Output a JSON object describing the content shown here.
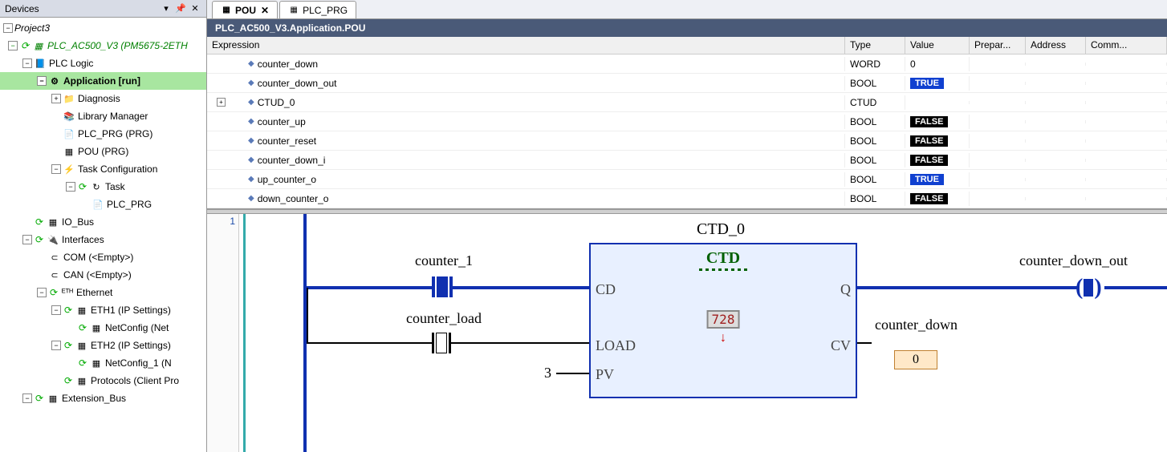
{
  "panel": {
    "title": "Devices",
    "project": "Project3"
  },
  "tree": [
    {
      "indent": 0,
      "toggle": "-",
      "status": "green",
      "icon": "device",
      "label": "PLC_AC500_V3 (PM5675-2ETH",
      "italic": true,
      "green": true
    },
    {
      "indent": 1,
      "toggle": "-",
      "status": "",
      "icon": "plclogic",
      "label": "PLC Logic"
    },
    {
      "indent": 2,
      "toggle": "-",
      "status": "",
      "icon": "app",
      "label": "Application [run]",
      "bold": true,
      "bg": true
    },
    {
      "indent": 3,
      "toggle": "+",
      "status": "",
      "icon": "folder",
      "label": "Diagnosis"
    },
    {
      "indent": 3,
      "toggle": " ",
      "status": "",
      "icon": "lib",
      "label": "Library Manager"
    },
    {
      "indent": 3,
      "toggle": " ",
      "status": "",
      "icon": "prg",
      "label": "PLC_PRG (PRG)"
    },
    {
      "indent": 3,
      "toggle": " ",
      "status": "",
      "icon": "pou",
      "label": "POU (PRG)"
    },
    {
      "indent": 3,
      "toggle": "-",
      "status": "",
      "icon": "taskcfg",
      "label": "Task Configuration"
    },
    {
      "indent": 4,
      "toggle": "-",
      "status": "green",
      "icon": "task",
      "label": "Task"
    },
    {
      "indent": 5,
      "toggle": " ",
      "status": "",
      "icon": "prgref",
      "label": "PLC_PRG"
    },
    {
      "indent": 1,
      "toggle": " ",
      "status": "green",
      "icon": "bus",
      "label": "IO_Bus"
    },
    {
      "indent": 1,
      "toggle": "-",
      "status": "green",
      "icon": "if",
      "label": "Interfaces"
    },
    {
      "indent": 2,
      "toggle": " ",
      "status": "",
      "icon": "com",
      "label": "COM (<Empty>)"
    },
    {
      "indent": 2,
      "toggle": " ",
      "status": "",
      "icon": "can",
      "label": "CAN (<Empty>)"
    },
    {
      "indent": 2,
      "toggle": "-",
      "status": "green",
      "icon": "eth",
      "label": "Ethernet"
    },
    {
      "indent": 3,
      "toggle": "-",
      "status": "green",
      "icon": "ethport",
      "label": "ETH1 (IP Settings)"
    },
    {
      "indent": 4,
      "toggle": " ",
      "status": "green",
      "icon": "netcfg",
      "label": "NetConfig (Net"
    },
    {
      "indent": 3,
      "toggle": "-",
      "status": "green",
      "icon": "ethport",
      "label": "ETH2 (IP Settings)"
    },
    {
      "indent": 4,
      "toggle": " ",
      "status": "green",
      "icon": "netcfg",
      "label": "NetConfig_1 (N"
    },
    {
      "indent": 3,
      "toggle": " ",
      "status": "green",
      "icon": "proto",
      "label": "Protocols (Client Pro"
    },
    {
      "indent": 1,
      "toggle": "-",
      "status": "green",
      "icon": "extbus",
      "label": "Extension_Bus"
    }
  ],
  "tabs": [
    {
      "icon": "pou",
      "label": "POU",
      "active": true,
      "close": true
    },
    {
      "icon": "prg",
      "label": "PLC_PRG",
      "active": false,
      "close": false
    }
  ],
  "breadcrumb": "PLC_AC500_V3.Application.POU",
  "grid": {
    "headers": [
      "Expression",
      "Type",
      "Value",
      "Prepar...",
      "Address",
      "Comm..."
    ],
    "rows": [
      {
        "expand": "",
        "name": "counter_down",
        "type": "WORD",
        "value": "0",
        "valClass": ""
      },
      {
        "expand": "",
        "name": "counter_down_out",
        "type": "BOOL",
        "value": "TRUE",
        "valClass": "val-true"
      },
      {
        "expand": "+",
        "name": "CTUD_0",
        "type": "CTUD",
        "value": "",
        "valClass": ""
      },
      {
        "expand": "",
        "name": "counter_up",
        "type": "BOOL",
        "value": "FALSE",
        "valClass": "val-false"
      },
      {
        "expand": "",
        "name": "counter_reset",
        "type": "BOOL",
        "value": "FALSE",
        "valClass": "val-false"
      },
      {
        "expand": "",
        "name": "counter_down_i",
        "type": "BOOL",
        "value": "FALSE",
        "valClass": "val-false"
      },
      {
        "expand": "",
        "name": "up_counter_o",
        "type": "BOOL",
        "value": "TRUE",
        "valClass": "val-true"
      },
      {
        "expand": "",
        "name": "down_counter_o",
        "type": "BOOL",
        "value": "FALSE",
        "valClass": "val-false"
      }
    ]
  },
  "diagram": {
    "lineno": "1",
    "instance": "CTD_0",
    "fbtype": "CTD",
    "pins": {
      "cd": "CD",
      "load": "LOAD",
      "pv": "PV",
      "q": "Q",
      "cv": "CV"
    },
    "labels": {
      "counter1": "counter_1",
      "counterload": "counter_load",
      "pvval": "3",
      "cvvar": "counter_down",
      "coil": "counter_down_out",
      "cvbox": "0"
    },
    "colors": {
      "blue": "#1030b0",
      "black": "#000000",
      "fbfill": "#e8f0ff",
      "fbtext": "#006000"
    }
  }
}
